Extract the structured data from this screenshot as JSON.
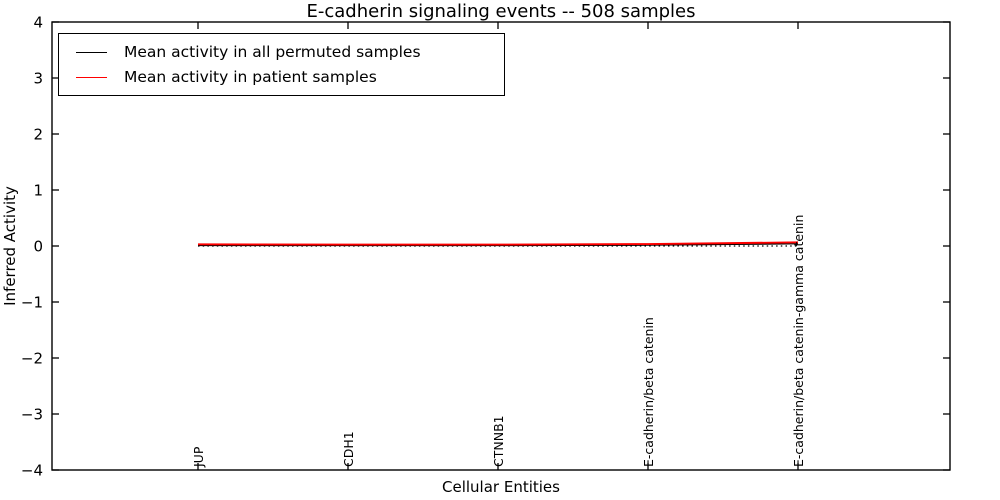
{
  "chart_data": {
    "type": "line",
    "title": "E-cadherin signaling events -- 508 samples",
    "xlabel": "Cellular Entities",
    "ylabel": "Inferred Activity",
    "ylim": [
      -4,
      4
    ],
    "yticks": [
      4,
      3,
      2,
      1,
      0,
      -1,
      -2,
      -3,
      -4
    ],
    "ytick_labels": [
      "4",
      "3",
      "2",
      "1",
      "0",
      "−1",
      "−2",
      "−3",
      "−4"
    ],
    "categories": [
      "JUP",
      "CDH1",
      "CTNNB1",
      "E-cadherin/beta catenin",
      "E-cadherin/beta catenin-gamma catenin"
    ],
    "series": [
      {
        "name": "Mean activity in all permuted samples",
        "color": "#000000",
        "values": [
          0.01,
          0.01,
          0.01,
          0.015,
          0.04
        ]
      },
      {
        "name": "Mean activity in patient samples",
        "color": "#ff0000",
        "values": [
          0.03,
          0.025,
          0.025,
          0.035,
          0.065
        ]
      }
    ],
    "reference_line": {
      "y": 0,
      "style": "dotted",
      "color": "#000000"
    },
    "legend_position": "upper-left",
    "grid": false,
    "background": "#ffffff"
  }
}
